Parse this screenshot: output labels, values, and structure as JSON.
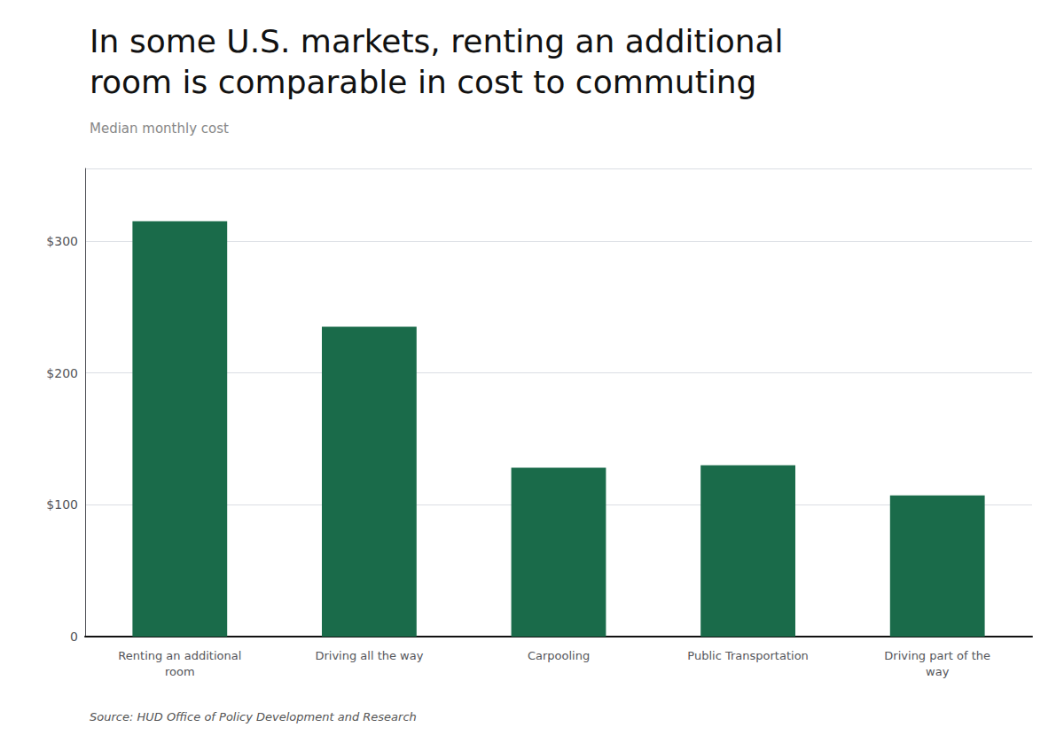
{
  "chart_data": {
    "type": "bar",
    "title": "In some U.S. markets, renting an additional\nroom is comparable in cost to commuting",
    "subtitle": "Median monthly cost",
    "source": "Source: HUD Office of Policy Development and Research",
    "categories": [
      "Renting an additional\nroom",
      "Driving all the way",
      "Carpooling",
      "Public Transportation",
      "Driving part of the\nway"
    ],
    "values": [
      315,
      235,
      128,
      130,
      107
    ],
    "color": "#1a6b4a",
    "ylim": [
      0,
      355
    ],
    "yticks": [
      0,
      {
        "value": 100,
        "label": "$100"
      },
      {
        "value": 200,
        "label": "$200"
      },
      {
        "value": 300,
        "label": "$300"
      }
    ],
    "grid": true
  }
}
